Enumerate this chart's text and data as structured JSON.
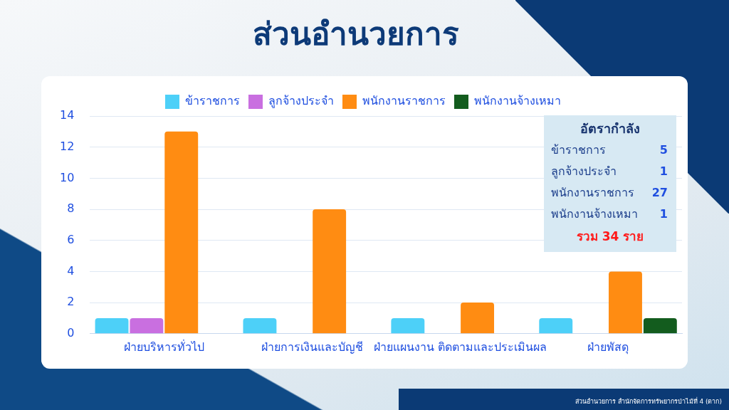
{
  "chart_data": {
    "type": "bar",
    "title": "ส่วนอำนวยการ",
    "categories": [
      "ฝ่ายบริหารทั่วไป",
      "ฝ่ายการเงินและบัญชี",
      "ฝ่ายแผนงาน ติดตามและประเมินผล",
      "ฝ่ายพัสดุ"
    ],
    "series": [
      {
        "name": "ข้าราชการ",
        "color": "#4dd0f8",
        "values": [
          1,
          1,
          1,
          1
        ]
      },
      {
        "name": "ลูกจ้างประจำ",
        "color": "#c96fe0",
        "values": [
          1,
          null,
          null,
          null
        ]
      },
      {
        "name": "พนักงานราชการ",
        "color": "#ff8c12",
        "values": [
          13,
          8,
          2,
          4
        ]
      },
      {
        "name": "พนักงานจ้างเหมา",
        "color": "#135c1e",
        "values": [
          null,
          null,
          null,
          1
        ]
      }
    ],
    "ylim": [
      0,
      14
    ],
    "yticks": [
      0,
      2,
      4,
      6,
      8,
      10,
      12,
      14
    ],
    "grid": "y",
    "legend": "top",
    "annotations": [
      "อัตรากำลัง",
      "ข้าราชการ 5",
      "ลูกจ้างประจำ 1",
      "พนักงานราชการ 27",
      "พนักงานจ้างเหมา 1",
      "รวม 34 ราย",
      "ส่วนอำนวยการ สำนักจัดการทรัพยากรป่าไม้ที่ 4 (ตาก)"
    ]
  }
}
